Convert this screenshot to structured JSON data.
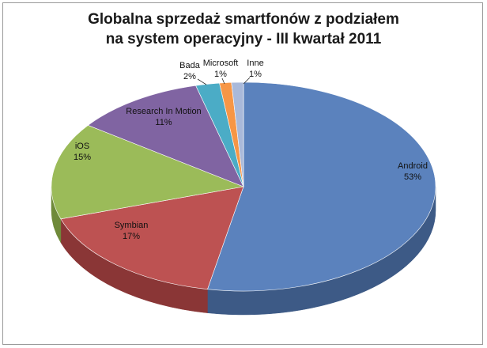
{
  "chart_data": {
    "type": "pie",
    "title": "Globalna sprzedaż smartfonów z podziałem na system operacyjny - III kwartał 2011",
    "title_lines": [
      "Globalna sprzedaż smartfonów z podziałem",
      "na system operacyjny - III kwartał 2011"
    ],
    "style": "3d",
    "legend": "none",
    "slices": [
      {
        "label": "Android",
        "value": 53,
        "value_label": "53%",
        "color": "#5b82bd",
        "side": "#3d5a86"
      },
      {
        "label": "Symbian",
        "value": 17,
        "value_label": "17%",
        "color": "#bd5252",
        "side": "#8a3636"
      },
      {
        "label": "iOS",
        "value": 15,
        "value_label": "15%",
        "color": "#9bbb59",
        "side": "#6f8a3a"
      },
      {
        "label": "Research In Motion",
        "value": 11,
        "value_label": "11%",
        "color": "#8064a2",
        "side": "#5b4575"
      },
      {
        "label": "Bada",
        "value": 2,
        "value_label": "2%",
        "color": "#4bacc6",
        "side": "#327d91"
      },
      {
        "label": "Microsoft",
        "value": 1,
        "value_label": "1%",
        "color": "#f79646",
        "side": "#b36a2c"
      },
      {
        "label": "Inne",
        "value": 1,
        "value_label": "1%",
        "color": "#a9b9da",
        "side": "#7f8ea9"
      }
    ]
  }
}
